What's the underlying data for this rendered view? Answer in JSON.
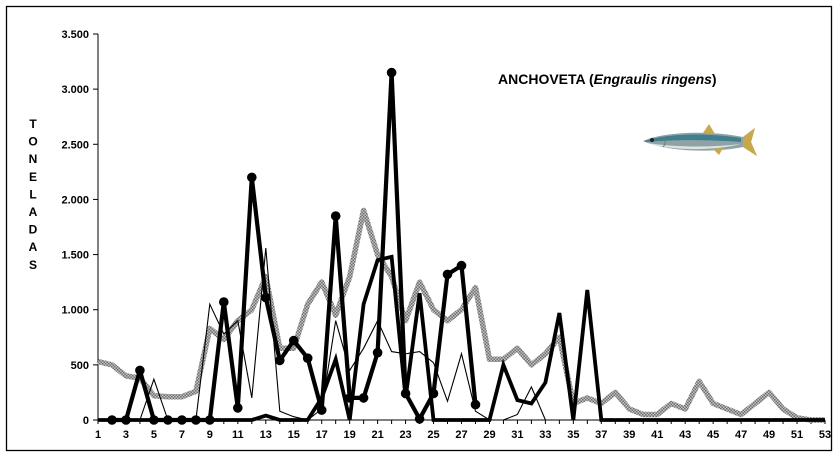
{
  "chart_data": {
    "type": "line",
    "title": {
      "prefix": "ANCHOVETA  (",
      "species": "Engraulis ringens",
      "suffix": ")"
    },
    "ylabel": "TONELADAS",
    "ylim": [
      0,
      3500
    ],
    "yticks": [
      0,
      500,
      1000,
      1500,
      2000,
      2500,
      3000,
      3500
    ],
    "ytick_labels": [
      "0",
      "500",
      "1.000",
      "1.500",
      "2.000",
      "2.500",
      "3.000",
      "3.500"
    ],
    "xlim": [
      1,
      53
    ],
    "xtick_labels": [
      "1",
      "3",
      "5",
      "7",
      "9",
      "11",
      "13",
      "15",
      "17",
      "19",
      "21",
      "23",
      "25",
      "27",
      "29",
      "31",
      "33",
      "35",
      "37",
      "39",
      "41",
      "43",
      "45",
      "47",
      "49",
      "51",
      "53"
    ],
    "grid": false,
    "legend": "none",
    "series": [
      {
        "style": "gray-pattern",
        "color": "#9a9a9a",
        "x": [
          1,
          2,
          3,
          4,
          5,
          6,
          7,
          8,
          9,
          10,
          11,
          12,
          13,
          14,
          15,
          16,
          17,
          18,
          19,
          20,
          21,
          22,
          23,
          24,
          25,
          26,
          27,
          28,
          29,
          30,
          31,
          32,
          33,
          34,
          35,
          36,
          37,
          38,
          39,
          40,
          41,
          42,
          43,
          44,
          45,
          46,
          47,
          48,
          49,
          50,
          51,
          52,
          53
        ],
        "y": [
          530,
          500,
          400,
          380,
          220,
          210,
          210,
          260,
          830,
          730,
          900,
          1000,
          1300,
          650,
          650,
          1050,
          1250,
          950,
          1300,
          1900,
          1500,
          1300,
          900,
          1250,
          1000,
          900,
          1000,
          1200,
          550,
          550,
          650,
          500,
          600,
          750,
          150,
          200,
          150,
          250,
          100,
          50,
          50,
          150,
          100,
          350,
          150,
          100,
          50,
          150,
          250,
          100,
          20,
          0,
          0
        ]
      },
      {
        "style": "thin",
        "color": "#000000",
        "x": [
          1,
          2,
          3,
          4,
          5,
          6,
          7,
          8,
          9,
          10,
          11,
          12,
          13,
          14,
          15,
          16,
          17,
          18,
          19,
          20,
          21,
          22,
          23,
          24,
          25,
          26,
          27,
          28,
          29,
          30,
          31,
          32,
          33,
          34,
          35,
          36,
          37,
          38,
          39,
          40,
          41,
          42,
          43,
          44,
          45,
          46,
          47,
          48,
          49,
          50,
          51,
          52,
          53
        ],
        "y": [
          0,
          0,
          0,
          0,
          370,
          0,
          0,
          0,
          1050,
          780,
          900,
          200,
          1560,
          80,
          30,
          0,
          100,
          900,
          450,
          650,
          900,
          620,
          600,
          620,
          520,
          170,
          600,
          80,
          0,
          0,
          50,
          300,
          0,
          0,
          0,
          0,
          0,
          0,
          0,
          0,
          0,
          0,
          0,
          0,
          0,
          0,
          0,
          0,
          0,
          0,
          0,
          0,
          0
        ]
      },
      {
        "style": "thick",
        "color": "#000000",
        "x": [
          1,
          2,
          3,
          4,
          5,
          6,
          7,
          8,
          9,
          10,
          11,
          12,
          13,
          14,
          15,
          16,
          17,
          18,
          19,
          20,
          21,
          22,
          23,
          24,
          25,
          26,
          27,
          28,
          29,
          30,
          31,
          32,
          33,
          34,
          35,
          36,
          37,
          38,
          39,
          40,
          41,
          42,
          43,
          44,
          45,
          46,
          47,
          48,
          49,
          50,
          51,
          52,
          53
        ],
        "y": [
          0,
          0,
          0,
          0,
          0,
          0,
          0,
          0,
          0,
          0,
          0,
          0,
          40,
          0,
          0,
          0,
          200,
          550,
          0,
          1050,
          1450,
          1480,
          200,
          1150,
          0,
          0,
          0,
          0,
          0,
          500,
          180,
          150,
          340,
          970,
          0,
          1180,
          0,
          0,
          0,
          0,
          0,
          0,
          0,
          0,
          0,
          0,
          0,
          0,
          0,
          0,
          0,
          0,
          0
        ]
      },
      {
        "style": "thick-markers",
        "color": "#000000",
        "x": [
          2,
          3,
          4,
          5,
          6,
          7,
          8,
          9,
          10,
          11,
          12,
          13,
          14,
          15,
          16,
          17,
          18,
          19,
          20,
          21,
          22,
          23,
          24,
          25,
          26,
          27,
          28
        ],
        "y": [
          0,
          0,
          450,
          0,
          0,
          0,
          0,
          0,
          1070,
          110,
          2200,
          1110,
          540,
          720,
          560,
          90,
          1850,
          200,
          200,
          610,
          3150,
          240,
          10,
          240,
          1320,
          1400,
          140
        ]
      }
    ]
  }
}
